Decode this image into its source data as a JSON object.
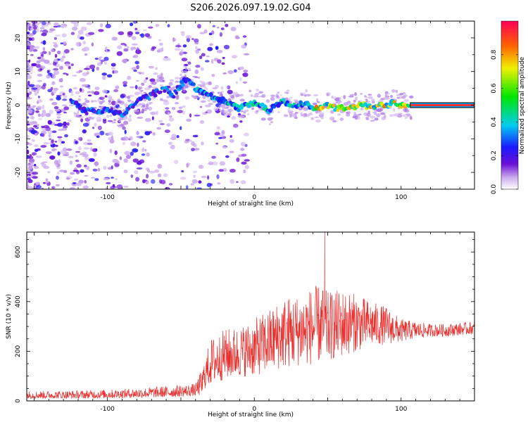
{
  "title": "S206.2026.097.19.02.G04",
  "chart_data": [
    {
      "type": "heatmap",
      "name": "spectrogram",
      "xlabel": "Height of straight line (km)",
      "ylabel": "Frequency (Hz)",
      "xlim": [
        -155,
        150
      ],
      "ylim": [
        -25,
        25
      ],
      "xticks": [
        -100,
        0,
        100
      ],
      "yticks": [
        -20,
        -10,
        0,
        10,
        20
      ],
      "ridge": {
        "x": [
          -125,
          -120,
          -115,
          -110,
          -105,
          -100,
          -95,
          -90,
          -85,
          -80,
          -75,
          -70,
          -65,
          -60,
          -55,
          -50,
          -45,
          -40,
          -35,
          -30,
          -25,
          -20,
          -15,
          -10,
          -5,
          0,
          5,
          10,
          15,
          20,
          25,
          30,
          35,
          40,
          45,
          50,
          55,
          60,
          65,
          70,
          75,
          80,
          85,
          90,
          95,
          100,
          105,
          150
        ],
        "y": [
          1,
          0,
          -2,
          -1,
          -2,
          -1,
          -2,
          -3,
          -1,
          1,
          2,
          3,
          4,
          5,
          3,
          6,
          8,
          5,
          4,
          3,
          2,
          1,
          0,
          -1,
          0,
          1,
          0,
          -2,
          0,
          1,
          0,
          0,
          1,
          -1,
          -1,
          0,
          -1,
          -1,
          -1,
          0,
          0,
          -1,
          0,
          0,
          1,
          0,
          0,
          0
        ]
      },
      "colorbar": {
        "label": "Normalized spectral amplitude",
        "range": [
          0,
          1
        ],
        "ticks": [
          "0.0",
          "0.2",
          "0.4",
          "0.6",
          "0.8"
        ],
        "tick_values": [
          0,
          0.2,
          0.4,
          0.6,
          0.8
        ]
      }
    },
    {
      "type": "line",
      "name": "snr",
      "xlabel": "Height of straight line (km)",
      "ylabel": "SNR (10 * v/v)",
      "xlim": [
        -155,
        150
      ],
      "ylim": [
        0,
        680
      ],
      "xticks": [
        -100,
        0,
        100
      ],
      "yticks": [
        0,
        200,
        400,
        600
      ],
      "series": [
        {
          "name": "SNR",
          "color": "#e8302f",
          "envelope_x": [
            -155,
            -120,
            -90,
            -60,
            -40,
            -35,
            -30,
            -20,
            -10,
            0,
            10,
            20,
            30,
            40,
            45,
            50,
            60,
            70,
            80,
            90,
            100,
            110,
            120,
            130,
            140,
            150
          ],
          "envelope_lo": [
            10,
            10,
            12,
            15,
            20,
            25,
            30,
            50,
            60,
            60,
            70,
            80,
            90,
            90,
            100,
            110,
            130,
            160,
            190,
            200,
            220,
            240,
            250,
            250,
            255,
            260
          ],
          "envelope_hi": [
            40,
            42,
            48,
            60,
            70,
            140,
            250,
            290,
            300,
            330,
            370,
            420,
            430,
            460,
            470,
            440,
            450,
            430,
            400,
            380,
            330,
            320,
            310,
            310,
            315,
            320
          ]
        }
      ]
    }
  ]
}
